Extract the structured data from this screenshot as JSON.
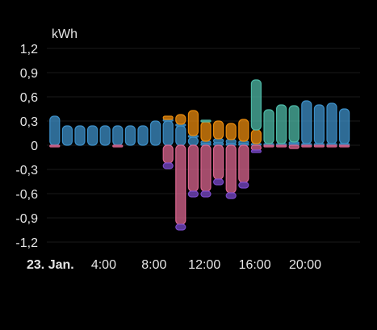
{
  "chart_data": {
    "type": "bar",
    "ylabel": "kWh",
    "ylim": [
      -1.2,
      1.2
    ],
    "yticks": [
      "1,2",
      "0,9",
      "0,6",
      "0,3",
      "0",
      "-0,3",
      "-0,6",
      "-0,9",
      "-1,2"
    ],
    "xticks": [
      {
        "label": "23. Jan.",
        "hour": 0,
        "bold": true
      },
      {
        "label": "4:00",
        "hour": 4,
        "bold": false
      },
      {
        "label": "8:00",
        "hour": 8,
        "bold": false
      },
      {
        "label": "12:00",
        "hour": 12,
        "bold": false
      },
      {
        "label": "16:00",
        "hour": 16,
        "bold": false
      },
      {
        "label": "20:00",
        "hour": 20,
        "bold": false
      }
    ],
    "hours": [
      0,
      1,
      2,
      3,
      4,
      5,
      6,
      7,
      8,
      9,
      10,
      11,
      12,
      13,
      14,
      15,
      16,
      17,
      18,
      19,
      20,
      21,
      22,
      23
    ],
    "series": [
      {
        "color": "#3d8fc7",
        "stack": "pos",
        "values": [
          0.36,
          0.24,
          0.24,
          0.24,
          0.24,
          0.24,
          0.24,
          0.24,
          0.3,
          0.3,
          0.24,
          0.1,
          0.02,
          0.03,
          0.02,
          0.02,
          0.02,
          0.02,
          0.02,
          0.02,
          0.02,
          0.02,
          0.02,
          0.02
        ]
      },
      {
        "color": "#3d8fc7",
        "stack": "pos_top",
        "values": [
          0,
          0,
          0,
          0,
          0,
          0,
          0,
          0,
          0,
          0.02,
          0.02,
          0.02,
          0.03,
          0.05,
          0.05,
          0.03,
          0,
          0,
          0,
          0.02,
          0.53,
          0.48,
          0.5,
          0.43
        ]
      },
      {
        "color": "#e88a0d",
        "stack": "pos",
        "values": [
          0,
          0,
          0,
          0,
          0,
          0,
          0,
          0,
          0,
          0.04,
          0.12,
          0.31,
          0.24,
          0.22,
          0.2,
          0.27,
          0.17,
          0,
          0,
          0,
          0,
          0,
          0,
          0
        ]
      },
      {
        "color": "#4db8a6",
        "stack": "pos",
        "values": [
          0,
          0,
          0,
          0,
          0,
          0,
          0,
          0,
          0,
          0,
          0,
          0,
          0.02,
          0,
          0,
          0,
          0.62,
          0.42,
          0.48,
          0.45,
          0,
          0,
          0,
          0
        ]
      },
      {
        "color": "#d9668f",
        "stack": "neg",
        "values": [
          -0.02,
          0,
          0,
          0,
          0,
          -0.02,
          0,
          0,
          0,
          -0.22,
          -0.98,
          -0.57,
          -0.57,
          -0.42,
          -0.59,
          -0.46,
          -0.06,
          -0.02,
          -0.02,
          -0.04,
          -0.02,
          -0.02,
          -0.02,
          -0.02
        ]
      },
      {
        "color": "#7a4ac9",
        "stack": "neg",
        "values": [
          0,
          0,
          0,
          0,
          0,
          0,
          0,
          0,
          0,
          -0.07,
          -0.07,
          -0.07,
          -0.07,
          -0.07,
          -0.07,
          -0.07,
          -0.03,
          0,
          0,
          0,
          0,
          0,
          0,
          0
        ]
      }
    ]
  }
}
